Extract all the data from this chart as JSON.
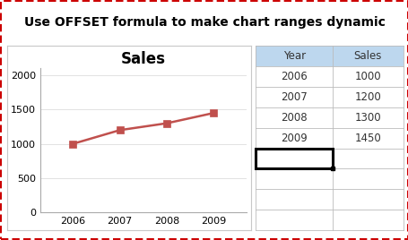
{
  "title_text": "Use OFFSET formula to make chart ranges dynamic",
  "title_bg_color": "#F5A800",
  "title_text_color": "#000000",
  "outer_border_color": "#CC0000",
  "chart_title": "Sales",
  "years": [
    2006,
    2007,
    2008,
    2009
  ],
  "sales": [
    1000,
    1200,
    1300,
    1450
  ],
  "line_color": "#C0504D",
  "marker_style": "s",
  "marker_color": "#C0504D",
  "chart_bg_color": "#FFFFFF",
  "chart_border_color": "#C8C8C8",
  "table_headers": [
    "Year",
    "Sales"
  ],
  "table_years": [
    2006,
    2007,
    2008,
    2009
  ],
  "table_sales": [
    1000,
    1200,
    1300,
    1450
  ],
  "table_header_bg": "#BDD7EE",
  "table_row_bg": "#FFFFFF",
  "table_extra_rows": 4,
  "ylim": [
    0,
    2100
  ],
  "yticks": [
    0,
    500,
    1000,
    1500,
    2000
  ],
  "bg_color": "#FFFFFF",
  "outer_bg": "#FFFFFF"
}
